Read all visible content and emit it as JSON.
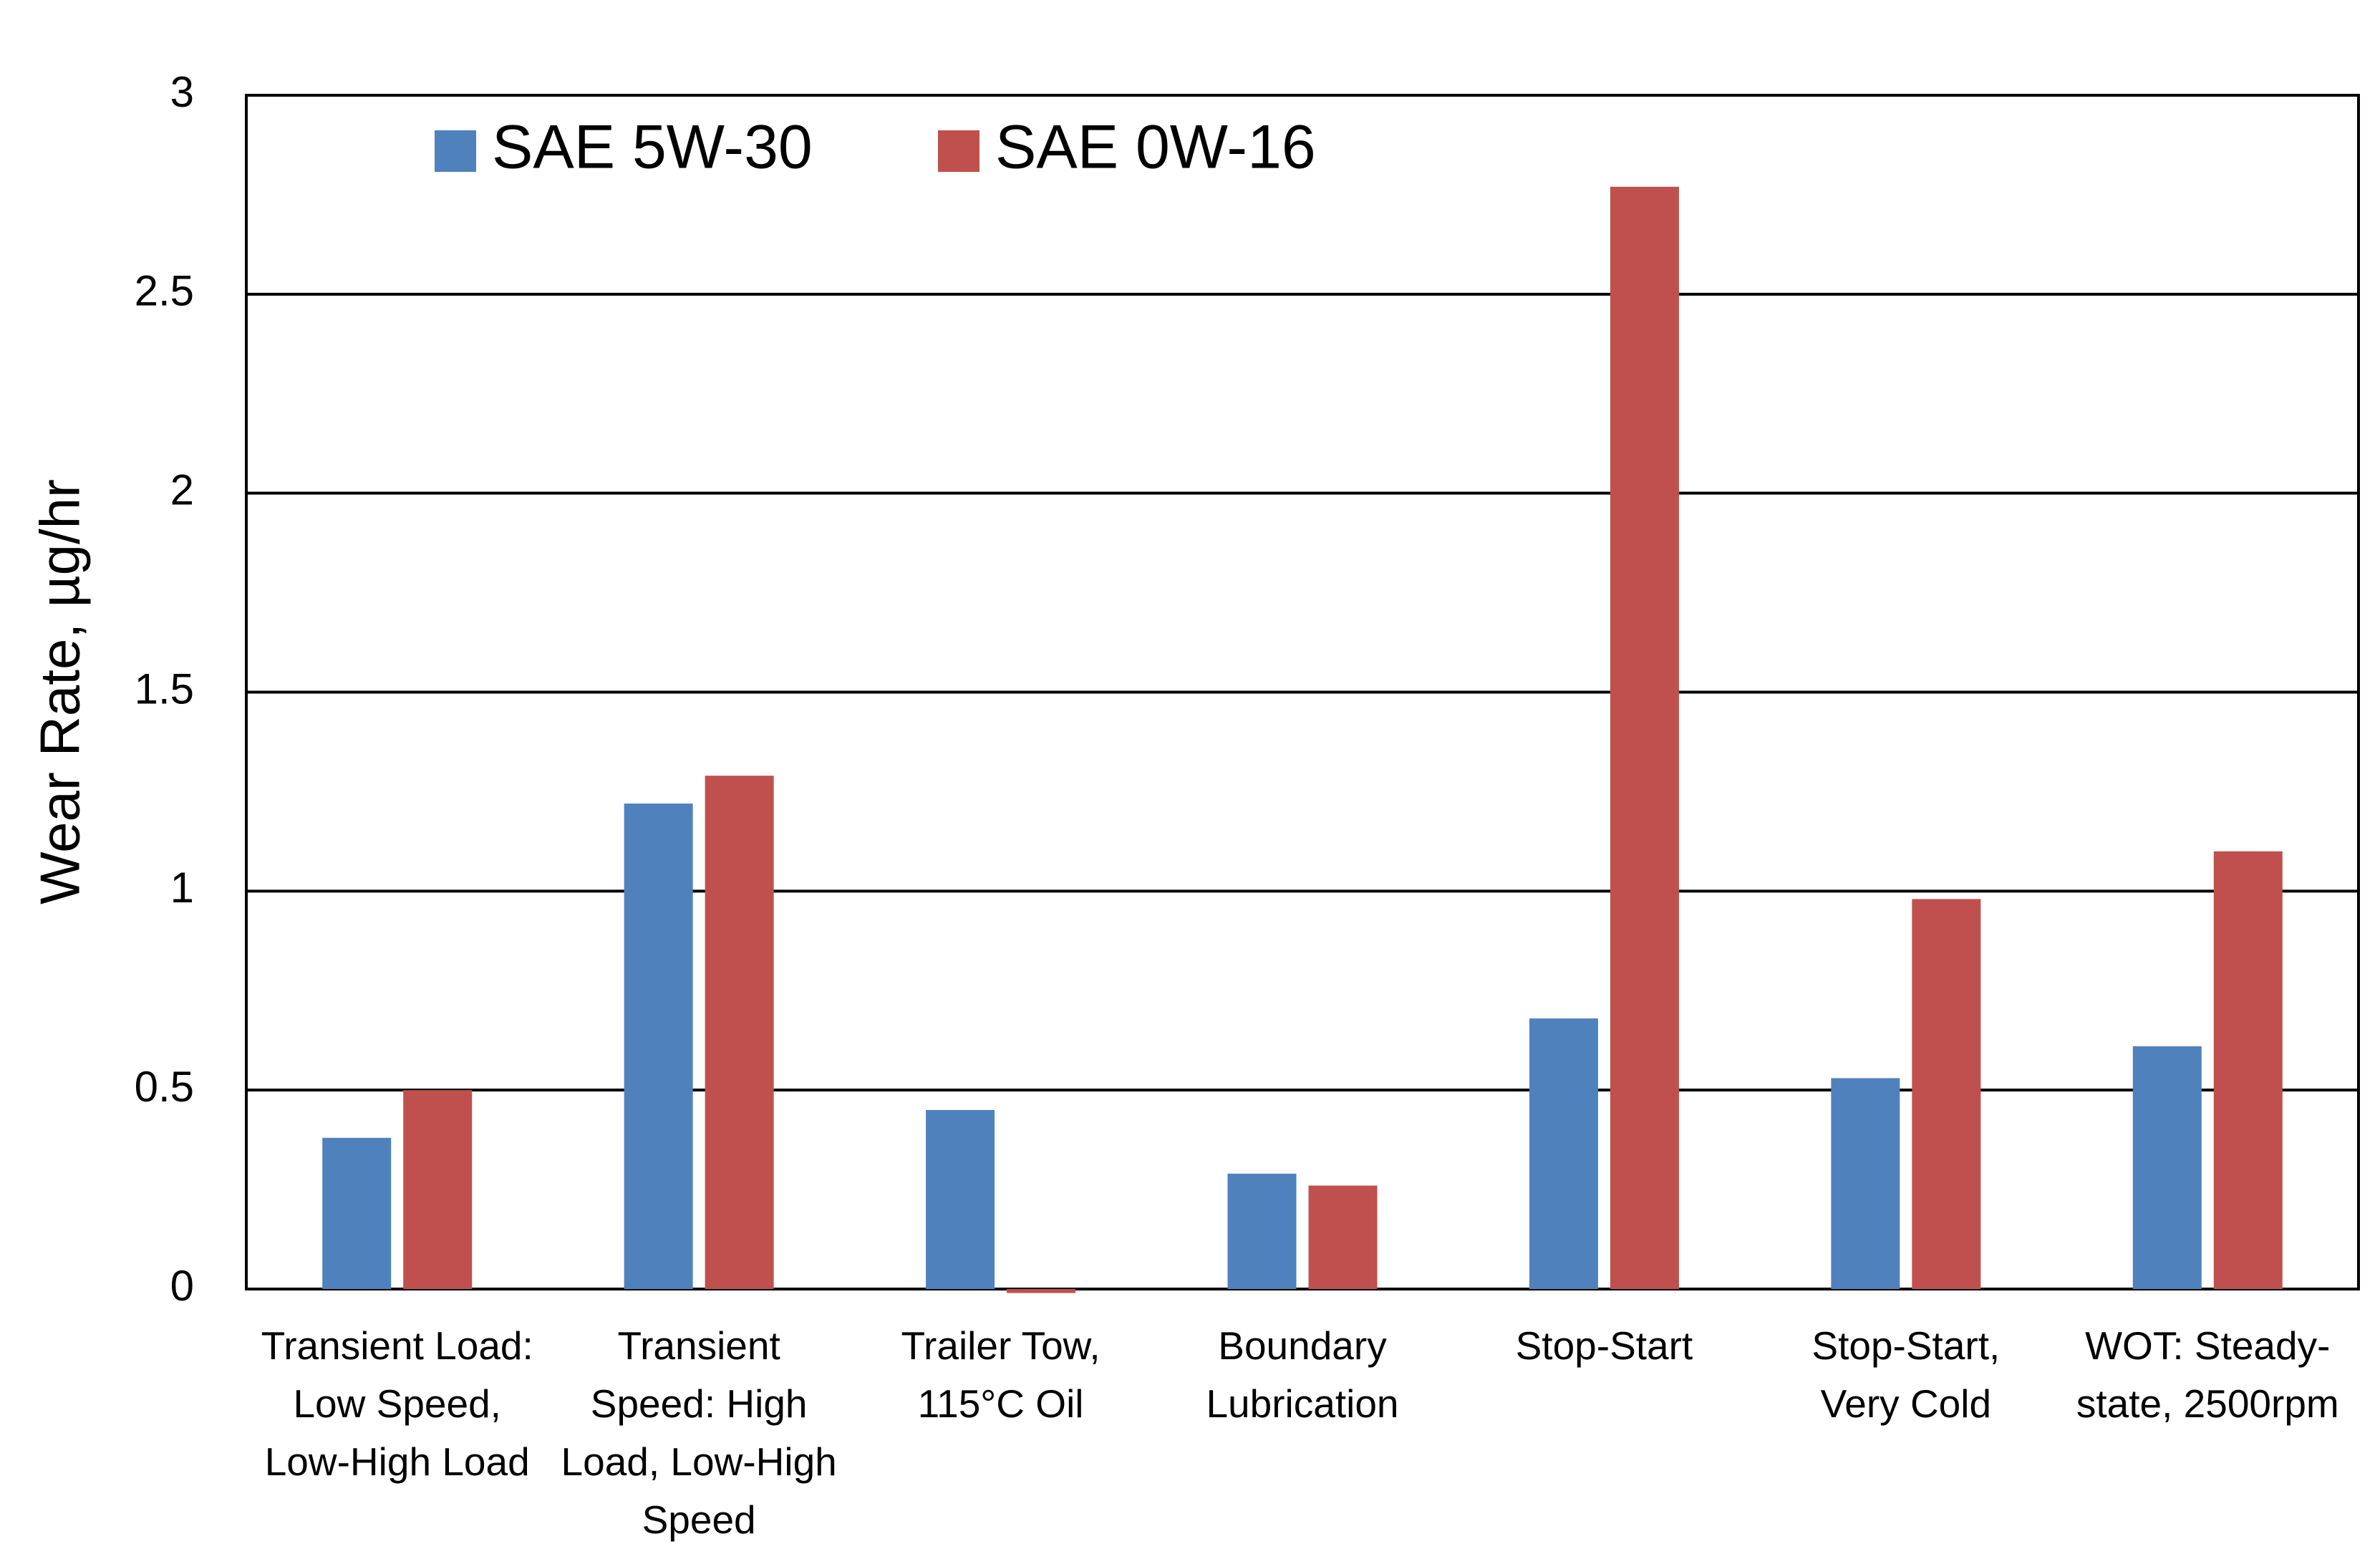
{
  "chart_data": {
    "type": "bar",
    "y_label": "Wear Rate, µg/hr",
    "categories": [
      "Transient Load:\nLow Speed,\nLow-High Load",
      "Transient\nSpeed: High\nLoad, Low-High\nSpeed",
      "Trailer Tow,\n115°C Oil",
      "Boundary\nLubrication",
      "Stop-Start",
      "Stop-Start,\nVery Cold",
      "WOT: Steady-\nstate, 2500rpm"
    ],
    "series": [
      {
        "name": "SAE 5W-30",
        "color": "#4f81bd",
        "values": [
          0.38,
          1.22,
          0.45,
          0.29,
          0.68,
          0.53,
          0.61
        ]
      },
      {
        "name": "SAE 0W-16",
        "color": "#c0504d",
        "values": [
          0.5,
          1.29,
          -0.01,
          0.26,
          2.77,
          0.98,
          1.1
        ]
      }
    ],
    "ylim": [
      0,
      3
    ],
    "yticks": [
      0,
      0.5,
      1,
      1.5,
      2,
      2.5,
      3
    ],
    "grid": true,
    "legend": "top-left"
  }
}
